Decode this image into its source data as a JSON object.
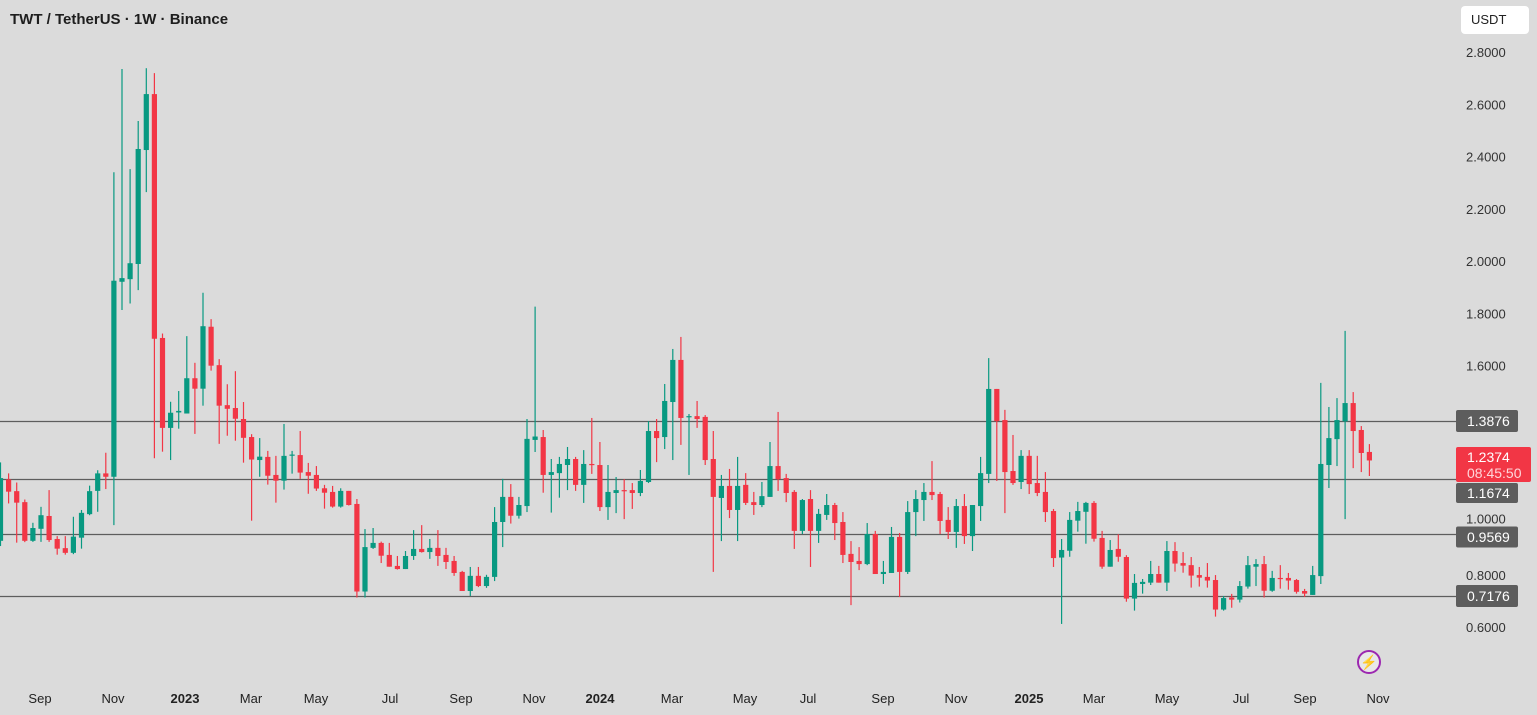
{
  "header": {
    "title": "TWT / TetherUS · 1W · Binance",
    "currency": "USDT"
  },
  "colors": {
    "up": "#089981",
    "down": "#f23645",
    "line": "#5d5d5d",
    "label_bg": "#5d5d5d",
    "current_bg": "#f23645",
    "background": "#dbdbdb"
  },
  "icons": {
    "alert": "lightning-bolt-icon"
  },
  "chart_data": {
    "type": "candlestick",
    "title": "TWT / TetherUS · 1W · Binance",
    "ylim": [
      0.55,
      2.85
    ],
    "grid": false,
    "y_ticks": [
      "2.8000",
      "2.6000",
      "2.4000",
      "2.2000",
      "2.0000",
      "1.8000",
      "1.6000",
      "1.0000",
      "0.8000",
      "0.6000"
    ],
    "y_tick_values": [
      2.8,
      2.6,
      2.4,
      2.2,
      2.0,
      1.8,
      1.6,
      1.0,
      0.8,
      0.6
    ],
    "x_ticks": [
      {
        "label": "Sep",
        "bold": false
      },
      {
        "label": "Nov",
        "bold": false
      },
      {
        "label": "2023",
        "bold": true
      },
      {
        "label": "Mar",
        "bold": false
      },
      {
        "label": "May",
        "bold": false
      },
      {
        "label": "Jul",
        "bold": false
      },
      {
        "label": "Sep",
        "bold": false
      },
      {
        "label": "Nov",
        "bold": false
      },
      {
        "label": "2024",
        "bold": true
      },
      {
        "label": "Mar",
        "bold": false
      },
      {
        "label": "May",
        "bold": false
      },
      {
        "label": "Jul",
        "bold": false
      },
      {
        "label": "Sep",
        "bold": false
      },
      {
        "label": "Nov",
        "bold": false
      },
      {
        "label": "2025",
        "bold": true
      },
      {
        "label": "Mar",
        "bold": false
      },
      {
        "label": "May",
        "bold": false
      },
      {
        "label": "Jul",
        "bold": false
      },
      {
        "label": "Sep",
        "bold": false
      },
      {
        "label": "Nov",
        "bold": false
      }
    ],
    "horizontal_lines": [
      {
        "value": 1.3876,
        "label": "1.3876"
      },
      {
        "value": 1.1674,
        "label": "1.1674"
      },
      {
        "value": 0.9569,
        "label": "0.9569"
      },
      {
        "value": 0.7176,
        "label": "0.7176"
      }
    ],
    "current_price": {
      "value": 1.2374,
      "label": "1.2374",
      "countdown": "08:45:50"
    },
    "candles_ohlc": [
      [
        0.93,
        1.23,
        0.91,
        1.17
      ],
      [
        1.165,
        1.188,
        1.073,
        1.118
      ],
      [
        1.12,
        1.153,
        0.923,
        1.076
      ],
      [
        1.078,
        1.088,
        0.925,
        0.93
      ],
      [
        0.93,
        0.999,
        0.926,
        0.979
      ],
      [
        0.976,
        1.06,
        0.926,
        1.028
      ],
      [
        1.025,
        1.124,
        0.926,
        0.933
      ],
      [
        0.937,
        0.948,
        0.877,
        0.9
      ],
      [
        0.902,
        0.948,
        0.877,
        0.884
      ],
      [
        0.884,
        1.022,
        0.879,
        0.946
      ],
      [
        0.942,
        1.048,
        0.9,
        1.037
      ],
      [
        1.032,
        1.141,
        1.028,
        1.12
      ],
      [
        1.121,
        1.2,
        1.041,
        1.188
      ],
      [
        1.188,
        1.267,
        1.128,
        1.175
      ],
      [
        1.175,
        2.34,
        0.99,
        1.925
      ],
      [
        1.921,
        2.735,
        1.813,
        1.935
      ],
      [
        1.931,
        2.352,
        1.838,
        1.992
      ],
      [
        1.989,
        2.536,
        1.889,
        2.429
      ],
      [
        2.425,
        2.738,
        2.264,
        2.639
      ],
      [
        2.639,
        2.719,
        1.246,
        1.703
      ],
      [
        1.706,
        1.723,
        1.271,
        1.362
      ],
      [
        1.362,
        1.462,
        1.239,
        1.42
      ],
      [
        1.421,
        1.503,
        1.359,
        1.427
      ],
      [
        1.417,
        1.713,
        1.417,
        1.552
      ],
      [
        1.552,
        1.611,
        1.339,
        1.512
      ],
      [
        1.512,
        1.879,
        1.447,
        1.751
      ],
      [
        1.749,
        1.778,
        1.581,
        1.6
      ],
      [
        1.602,
        1.625,
        1.301,
        1.447
      ],
      [
        1.449,
        1.529,
        1.332,
        1.435
      ],
      [
        1.438,
        1.579,
        1.313,
        1.397
      ],
      [
        1.396,
        1.461,
        1.229,
        1.324
      ],
      [
        1.327,
        1.338,
        1.007,
        1.241
      ],
      [
        1.239,
        1.323,
        1.175,
        1.252
      ],
      [
        1.251,
        1.274,
        1.145,
        1.179
      ],
      [
        1.182,
        1.255,
        1.076,
        1.16
      ],
      [
        1.16,
        1.377,
        1.126,
        1.255
      ],
      [
        1.256,
        1.274,
        1.187,
        1.26
      ],
      [
        1.258,
        1.35,
        1.167,
        1.191
      ],
      [
        1.193,
        1.228,
        1.11,
        1.179
      ],
      [
        1.182,
        1.216,
        1.121,
        1.13
      ],
      [
        1.131,
        1.144,
        1.053,
        1.114
      ],
      [
        1.117,
        1.14,
        1.057,
        1.061
      ],
      [
        1.061,
        1.131,
        1.057,
        1.121
      ],
      [
        1.121,
        1.121,
        1.065,
        1.067
      ],
      [
        1.071,
        1.09,
        0.713,
        0.736
      ],
      [
        0.736,
        0.975,
        0.713,
        0.906
      ],
      [
        0.903,
        0.979,
        0.899,
        0.922
      ],
      [
        0.922,
        0.927,
        0.845,
        0.873
      ],
      [
        0.876,
        0.922,
        0.831,
        0.831
      ],
      [
        0.834,
        0.872,
        0.82,
        0.822
      ],
      [
        0.822,
        0.891,
        0.822,
        0.872
      ],
      [
        0.872,
        0.971,
        0.857,
        0.899
      ],
      [
        0.899,
        0.99,
        0.885,
        0.887
      ],
      [
        0.887,
        0.937,
        0.861,
        0.903
      ],
      [
        0.903,
        0.971,
        0.834,
        0.872
      ],
      [
        0.876,
        0.903,
        0.822,
        0.849
      ],
      [
        0.853,
        0.872,
        0.796,
        0.807
      ],
      [
        0.811,
        0.815,
        0.738,
        0.738
      ],
      [
        0.738,
        0.83,
        0.719,
        0.796
      ],
      [
        0.796,
        0.83,
        0.753,
        0.757
      ],
      [
        0.757,
        0.8,
        0.75,
        0.792
      ],
      [
        0.792,
        1.059,
        0.776,
        1.002
      ],
      [
        1.002,
        1.167,
        0.906,
        1.098
      ],
      [
        1.098,
        1.147,
        0.996,
        1.026
      ],
      [
        1.026,
        1.098,
        1.015,
        1.067
      ],
      [
        1.063,
        1.396,
        1.04,
        1.32
      ],
      [
        1.316,
        1.826,
        1.27,
        1.329
      ],
      [
        1.327,
        1.354,
        1.114,
        1.182
      ],
      [
        1.182,
        1.243,
        1.038,
        1.193
      ],
      [
        1.189,
        1.251,
        1.095,
        1.224
      ],
      [
        1.22,
        1.289,
        1.124,
        1.243
      ],
      [
        1.243,
        1.251,
        1.121,
        1.144
      ],
      [
        1.144,
        1.277,
        1.075,
        1.224
      ],
      [
        1.224,
        1.4,
        1.186,
        1.22
      ],
      [
        1.22,
        1.308,
        1.044,
        1.059
      ],
      [
        1.059,
        1.22,
        1.01,
        1.117
      ],
      [
        1.113,
        1.174,
        1.036,
        1.124
      ],
      [
        1.124,
        1.166,
        1.013,
        1.121
      ],
      [
        1.124,
        1.151,
        1.052,
        1.113
      ],
      [
        1.113,
        1.201,
        1.101,
        1.159
      ],
      [
        1.155,
        1.388,
        1.151,
        1.35
      ],
      [
        1.35,
        1.396,
        1.231,
        1.323
      ],
      [
        1.327,
        1.53,
        1.281,
        1.465
      ],
      [
        1.461,
        1.664,
        1.239,
        1.622
      ],
      [
        1.622,
        1.71,
        1.297,
        1.4
      ],
      [
        1.403,
        1.415,
        1.182,
        1.407
      ],
      [
        1.407,
        1.465,
        1.362,
        1.396
      ],
      [
        1.404,
        1.411,
        1.22,
        1.239
      ],
      [
        1.243,
        1.35,
        0.811,
        1.098
      ],
      [
        1.094,
        1.182,
        0.929,
        1.14
      ],
      [
        1.14,
        1.205,
        1.017,
        1.048
      ],
      [
        1.048,
        1.251,
        0.929,
        1.14
      ],
      [
        1.144,
        1.189,
        1.067,
        1.075
      ],
      [
        1.078,
        1.117,
        1.029,
        1.067
      ],
      [
        1.067,
        1.155,
        1.059,
        1.101
      ],
      [
        1.098,
        1.308,
        1.098,
        1.216
      ],
      [
        1.216,
        1.423,
        1.121,
        1.166
      ],
      [
        1.17,
        1.186,
        1.078,
        1.113
      ],
      [
        1.117,
        1.124,
        0.899,
        0.968
      ],
      [
        0.968,
        1.09,
        0.956,
        1.086
      ],
      [
        1.09,
        1.124,
        0.83,
        0.968
      ],
      [
        0.968,
        1.052,
        0.922,
        1.033
      ],
      [
        1.029,
        1.109,
        1.01,
        1.067
      ],
      [
        1.067,
        1.075,
        0.933,
        0.998
      ],
      [
        1.002,
        1.04,
        0.845,
        0.876
      ],
      [
        0.88,
        0.929,
        0.684,
        0.849
      ],
      [
        0.853,
        0.906,
        0.818,
        0.841
      ],
      [
        0.841,
        0.998,
        0.837,
        0.956
      ],
      [
        0.956,
        0.968,
        0.803,
        0.803
      ],
      [
        0.803,
        0.853,
        0.765,
        0.811
      ],
      [
        0.807,
        0.983,
        0.807,
        0.945
      ],
      [
        0.945,
        0.96,
        0.715,
        0.811
      ],
      [
        0.811,
        1.082,
        0.803,
        1.04
      ],
      [
        1.04,
        1.124,
        0.948,
        1.09
      ],
      [
        1.086,
        1.151,
        1.006,
        1.117
      ],
      [
        1.117,
        1.235,
        1.086,
        1.105
      ],
      [
        1.109,
        1.117,
        0.956,
        1.006
      ],
      [
        1.01,
        1.059,
        0.937,
        0.964
      ],
      [
        0.964,
        1.09,
        0.903,
        1.063
      ],
      [
        1.063,
        1.109,
        0.918,
        0.948
      ],
      [
        0.948,
        1.067,
        0.891,
        1.067
      ],
      [
        1.063,
        1.251,
        1.006,
        1.189
      ],
      [
        1.186,
        1.629,
        1.151,
        1.511
      ],
      [
        1.511,
        1.511,
        1.159,
        1.388
      ],
      [
        1.392,
        1.431,
        1.036,
        1.193
      ],
      [
        1.197,
        1.335,
        1.144,
        1.151
      ],
      [
        1.155,
        1.277,
        1.128,
        1.255
      ],
      [
        1.255,
        1.277,
        1.109,
        1.147
      ],
      [
        1.151,
        1.255,
        1.101,
        1.113
      ],
      [
        1.117,
        1.193,
        1.002,
        1.04
      ],
      [
        1.044,
        1.052,
        0.83,
        0.864
      ],
      [
        0.866,
        0.937,
        0.612,
        0.895
      ],
      [
        0.892,
        1.04,
        0.869,
        1.01
      ],
      [
        1.007,
        1.079,
        0.965,
        1.044
      ],
      [
        1.041,
        1.079,
        0.919,
        1.075
      ],
      [
        1.075,
        1.082,
        0.927,
        0.938
      ],
      [
        0.941,
        0.968,
        0.823,
        0.831
      ],
      [
        0.831,
        0.933,
        0.831,
        0.895
      ],
      [
        0.899,
        0.955,
        0.85,
        0.869
      ],
      [
        0.868,
        0.875,
        0.697,
        0.709
      ],
      [
        0.709,
        0.803,
        0.663,
        0.769
      ],
      [
        0.765,
        0.784,
        0.728,
        0.773
      ],
      [
        0.77,
        0.853,
        0.761,
        0.803
      ],
      [
        0.803,
        0.834,
        0.77,
        0.77
      ],
      [
        0.77,
        0.929,
        0.738,
        0.891
      ],
      [
        0.891,
        0.925,
        0.812,
        0.843
      ],
      [
        0.845,
        0.887,
        0.808,
        0.835
      ],
      [
        0.837,
        0.868,
        0.751,
        0.797
      ],
      [
        0.799,
        0.83,
        0.755,
        0.789
      ],
      [
        0.792,
        0.845,
        0.751,
        0.778
      ],
      [
        0.78,
        0.799,
        0.64,
        0.667
      ],
      [
        0.667,
        0.719,
        0.663,
        0.711
      ],
      [
        0.713,
        0.727,
        0.674,
        0.705
      ],
      [
        0.705,
        0.776,
        0.694,
        0.757
      ],
      [
        0.755,
        0.872,
        0.747,
        0.837
      ],
      [
        0.831,
        0.86,
        0.757,
        0.841
      ],
      [
        0.841,
        0.872,
        0.713,
        0.739
      ],
      [
        0.739,
        0.815,
        0.735,
        0.788
      ],
      [
        0.788,
        0.837,
        0.747,
        0.785
      ],
      [
        0.788,
        0.807,
        0.743,
        0.778
      ],
      [
        0.78,
        0.784,
        0.728,
        0.735
      ],
      [
        0.738,
        0.746,
        0.716,
        0.728
      ],
      [
        0.723,
        0.834,
        0.723,
        0.799
      ],
      [
        0.795,
        1.534,
        0.765,
        1.224
      ],
      [
        1.22,
        1.442,
        1.132,
        1.323
      ],
      [
        1.319,
        1.476,
        1.216,
        1.392
      ],
      [
        1.387,
        1.733,
        1.013,
        1.457
      ],
      [
        1.457,
        1.499,
        1.208,
        1.35
      ],
      [
        1.354,
        1.369,
        1.193,
        1.266
      ],
      [
        1.27,
        1.3,
        1.178,
        1.2374
      ]
    ]
  }
}
